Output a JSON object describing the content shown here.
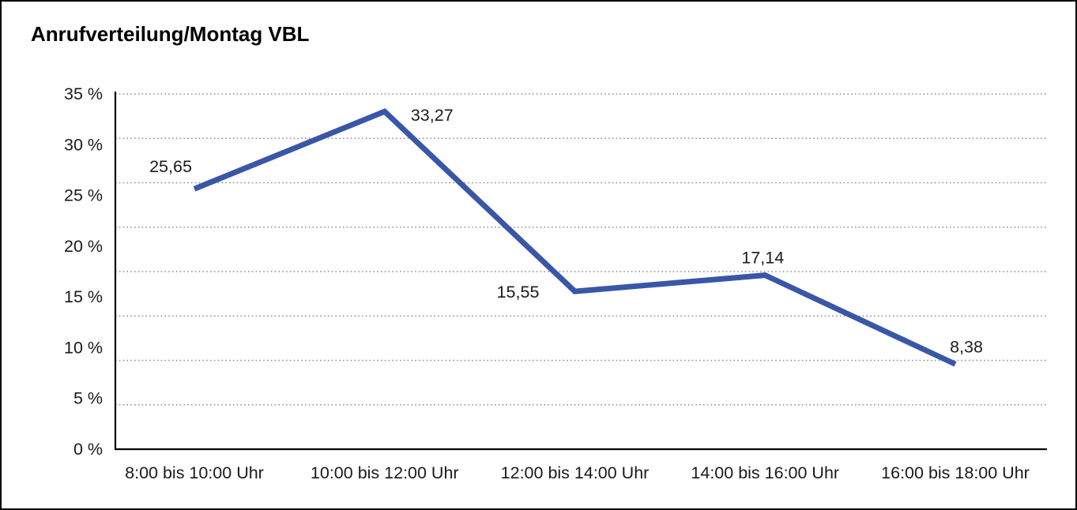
{
  "chart_data": {
    "type": "line",
    "title": "Anrufverteilung/Montag VBL",
    "categories": [
      "8:00 bis 10:00 Uhr",
      "10:00 bis 12:00 Uhr",
      "12:00 bis 14:00 Uhr",
      "14:00 bis 16:00 Uhr",
      "16:00 bis 18:00 Uhr"
    ],
    "values": [
      25.65,
      33.27,
      15.55,
      17.14,
      8.38
    ],
    "value_labels": [
      "25,65",
      "33,27",
      "15,55",
      "17,14",
      "8,38"
    ],
    "yticks": [
      {
        "value": 0,
        "label": "0 %"
      },
      {
        "value": 5,
        "label": "5 %"
      },
      {
        "value": 10,
        "label": "10 %"
      },
      {
        "value": 15,
        "label": "15 %"
      },
      {
        "value": 20,
        "label": "20 %"
      },
      {
        "value": 25,
        "label": "25 %"
      },
      {
        "value": 30,
        "label": "30 %"
      },
      {
        "value": 35,
        "label": "35 %"
      }
    ],
    "ylim": [
      0,
      35
    ],
    "xlabel": "",
    "ylabel": "",
    "grid": "horizontal-dotted",
    "legend": "none",
    "line_color": "#3A56A6",
    "axis_color": "#000000",
    "grid_color": "#8f8f8f"
  }
}
